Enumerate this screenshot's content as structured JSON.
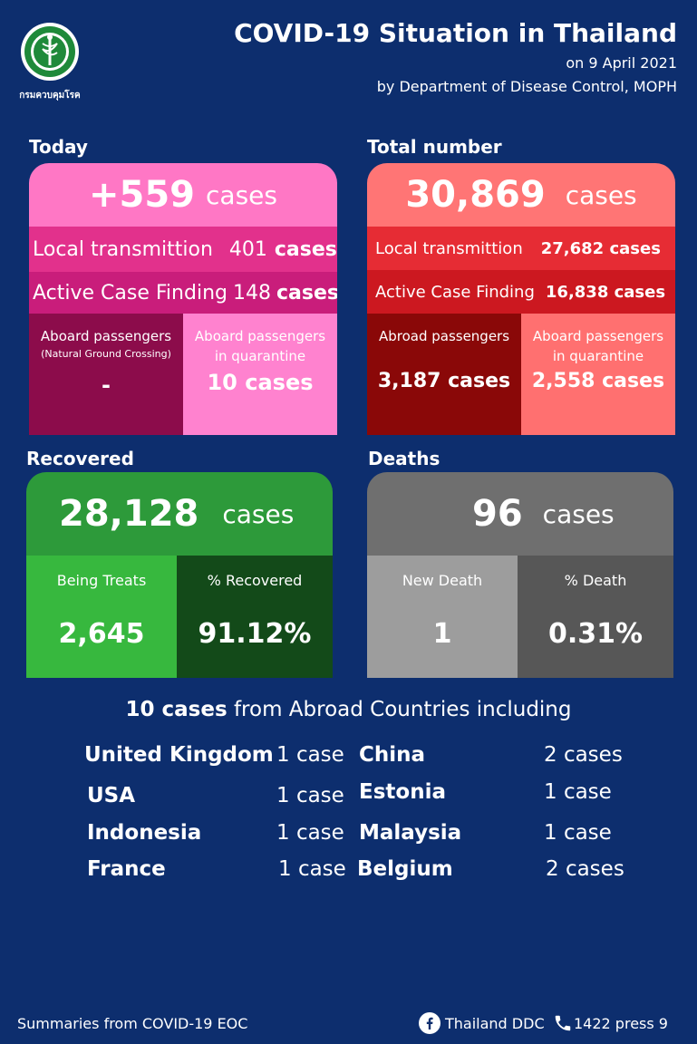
{
  "header": {
    "logo_text": "กรมควบคุมโรค",
    "title": "COVID-19 Situation in Thailand",
    "date": "on  9 April 2021",
    "by": "by Department of Disease Control, MOPH"
  },
  "today": {
    "label": "Today",
    "total_value": "+559",
    "total_unit": "cases",
    "local_label": "Local transmittion",
    "local_value": "401",
    "local_unit": "cases",
    "acf_label": "Active Case Finding",
    "acf_value": "148",
    "acf_unit": "cases",
    "aboard_label": "Aboard passengers",
    "aboard_sub": "(Natural Ground Crossing)",
    "aboard_value": "-",
    "quarantine_label_1": "Aboard passengers",
    "quarantine_label_2": "in quarantine",
    "quarantine_value": "10 cases"
  },
  "total": {
    "label": "Total number",
    "total_value": "30,869",
    "total_unit": "cases",
    "local_label": "Local transmittion",
    "local_value": "27,682 cases",
    "acf_label": "Active Case Finding",
    "acf_value": "16,838 cases",
    "abroad_label": "Abroad passengers",
    "abroad_value": "3,187 cases",
    "quarantine_label_1": "Aboard passengers",
    "quarantine_label_2": "in quarantine",
    "quarantine_value": "2,558 cases"
  },
  "recovered": {
    "label": "Recovered",
    "value": "28,128",
    "unit": "cases",
    "treat_label": "Being Treats",
    "treat_value": "2,645",
    "pct_label": "% Recovered",
    "pct_value": "91.12%"
  },
  "deaths": {
    "label": "Deaths",
    "value": "96",
    "unit": "cases",
    "new_label": "New Death",
    "new_value": "1",
    "pct_label": "% Death",
    "pct_value": "0.31%"
  },
  "abroad": {
    "head_bold": "10 cases",
    "head_rest": " from Abroad Countries including",
    "countries": [
      {
        "name": "United Kingdom",
        "count": "1 case"
      },
      {
        "name": "China",
        "count": "2 cases"
      },
      {
        "name": "USA",
        "count": "1 case"
      },
      {
        "name": "Estonia",
        "count": "1 case"
      },
      {
        "name": "Indonesia",
        "count": "1 case"
      },
      {
        "name": "Malaysia",
        "count": "1 case"
      },
      {
        "name": "France",
        "count": "1 case"
      },
      {
        "name": "Belgium",
        "count": "2 cases"
      }
    ]
  },
  "footer": {
    "source": "Summaries  from COVID-19 EOC",
    "facebook": "Thailand DDC",
    "phone": "1422 press 9",
    "facebook_icon": "facebook-icon",
    "phone_icon": "phone-icon"
  }
}
